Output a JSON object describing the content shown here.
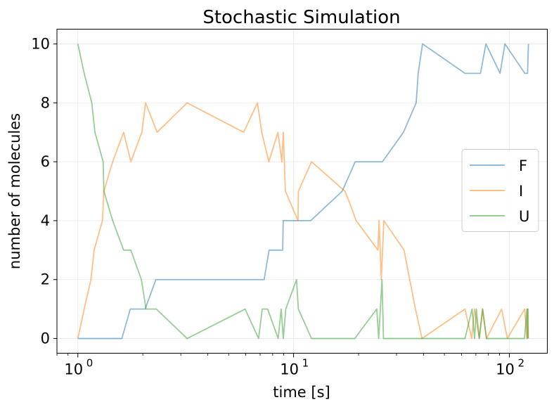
{
  "chart_data": {
    "type": "line",
    "title": "Stochastic Simulation",
    "xlabel": "time [s]",
    "ylabel": "number of molecules",
    "xscale": "log",
    "xlim": [
      0.8,
      150
    ],
    "ylim": [
      -0.5,
      10.5
    ],
    "xticks": [
      1,
      10,
      100
    ],
    "xtick_labels": [
      [
        "10",
        "0"
      ],
      [
        "10",
        "1"
      ],
      [
        "10",
        "2"
      ]
    ],
    "yticks": [
      0,
      2,
      4,
      6,
      8,
      10
    ],
    "ytick_labels": [
      "0",
      "2",
      "4",
      "6",
      "8",
      "10"
    ],
    "grid": true,
    "legend_position": "center right",
    "series": [
      {
        "name": "F",
        "color": "#1f77b4",
        "points": [
          [
            1.0,
            0
          ],
          [
            1.6,
            0
          ],
          [
            1.75,
            1
          ],
          [
            2.05,
            1
          ],
          [
            2.3,
            2
          ],
          [
            7.3,
            2
          ],
          [
            7.7,
            3
          ],
          [
            8.9,
            3
          ],
          [
            8.95,
            4
          ],
          [
            10.2,
            4
          ],
          [
            12.0,
            4
          ],
          [
            16.8,
            5
          ],
          [
            19.3,
            6
          ],
          [
            25.8,
            6
          ],
          [
            32.3,
            7
          ],
          [
            37.0,
            8
          ],
          [
            37.8,
            9
          ],
          [
            39.6,
            10
          ],
          [
            62.3,
            9
          ],
          [
            73.5,
            9
          ],
          [
            77.9,
            10
          ],
          [
            90.6,
            9
          ],
          [
            95.4,
            10
          ],
          [
            118.0,
            9
          ],
          [
            121.5,
            9
          ],
          [
            122.6,
            10
          ]
        ]
      },
      {
        "name": "I",
        "color": "#ff7f0e",
        "points": [
          [
            1.0,
            0
          ],
          [
            1.07,
            1
          ],
          [
            1.15,
            2
          ],
          [
            1.19,
            3
          ],
          [
            1.3,
            4
          ],
          [
            1.32,
            5
          ],
          [
            1.45,
            6
          ],
          [
            1.63,
            7
          ],
          [
            1.76,
            6
          ],
          [
            1.98,
            7
          ],
          [
            2.06,
            8
          ],
          [
            2.33,
            7
          ],
          [
            3.21,
            8
          ],
          [
            5.87,
            7
          ],
          [
            6.8,
            8
          ],
          [
            7.12,
            7
          ],
          [
            7.68,
            6
          ],
          [
            8.46,
            7
          ],
          [
            8.82,
            6
          ],
          [
            8.96,
            7
          ],
          [
            9.16,
            5
          ],
          [
            10.48,
            4
          ],
          [
            10.53,
            5
          ],
          [
            12.11,
            6
          ],
          [
            17.3,
            5
          ],
          [
            18.2,
            4.6
          ],
          [
            19.5,
            4
          ],
          [
            24.6,
            3
          ],
          [
            24.9,
            4
          ],
          [
            25.5,
            2
          ],
          [
            26.2,
            4
          ],
          [
            32.5,
            3
          ],
          [
            36.7,
            1
          ],
          [
            39.4,
            0
          ],
          [
            62.3,
            1
          ],
          [
            66.9,
            0
          ],
          [
            69.0,
            1
          ],
          [
            72.6,
            0
          ],
          [
            75.0,
            1
          ],
          [
            78.4,
            0
          ],
          [
            92.1,
            1
          ],
          [
            97.9,
            0
          ],
          [
            117.8,
            1
          ],
          [
            120.5,
            0
          ],
          [
            121.3,
            1
          ],
          [
            122.2,
            0
          ]
        ]
      },
      {
        "name": "U",
        "color": "#2ca02c",
        "points": [
          [
            1.0,
            10
          ],
          [
            1.07,
            9
          ],
          [
            1.16,
            8
          ],
          [
            1.2,
            7
          ],
          [
            1.31,
            6
          ],
          [
            1.32,
            5
          ],
          [
            1.45,
            4
          ],
          [
            1.63,
            3
          ],
          [
            1.76,
            3
          ],
          [
            1.97,
            2
          ],
          [
            2.07,
            1
          ],
          [
            2.31,
            1
          ],
          [
            3.21,
            0
          ],
          [
            5.96,
            1
          ],
          [
            6.88,
            0
          ],
          [
            7.16,
            1
          ],
          [
            7.58,
            1
          ],
          [
            8.48,
            0
          ],
          [
            8.76,
            1
          ],
          [
            8.96,
            0
          ],
          [
            9.2,
            1
          ],
          [
            10.32,
            2
          ],
          [
            10.52,
            1
          ],
          [
            12.11,
            0
          ],
          [
            19.2,
            0
          ],
          [
            24.3,
            1
          ],
          [
            24.8,
            0
          ],
          [
            25.7,
            2
          ],
          [
            26.1,
            0
          ],
          [
            39.3,
            0
          ],
          [
            62.3,
            0
          ],
          [
            67.2,
            1
          ],
          [
            69.0,
            0
          ],
          [
            70.3,
            1
          ],
          [
            72.5,
            0
          ],
          [
            75.3,
            1
          ],
          [
            78.3,
            0
          ],
          [
            92.0,
            0
          ],
          [
            117.6,
            0
          ],
          [
            120.6,
            1
          ],
          [
            121.2,
            0
          ],
          [
            122.2,
            1
          ],
          [
            122.4,
            0
          ]
        ]
      }
    ]
  }
}
